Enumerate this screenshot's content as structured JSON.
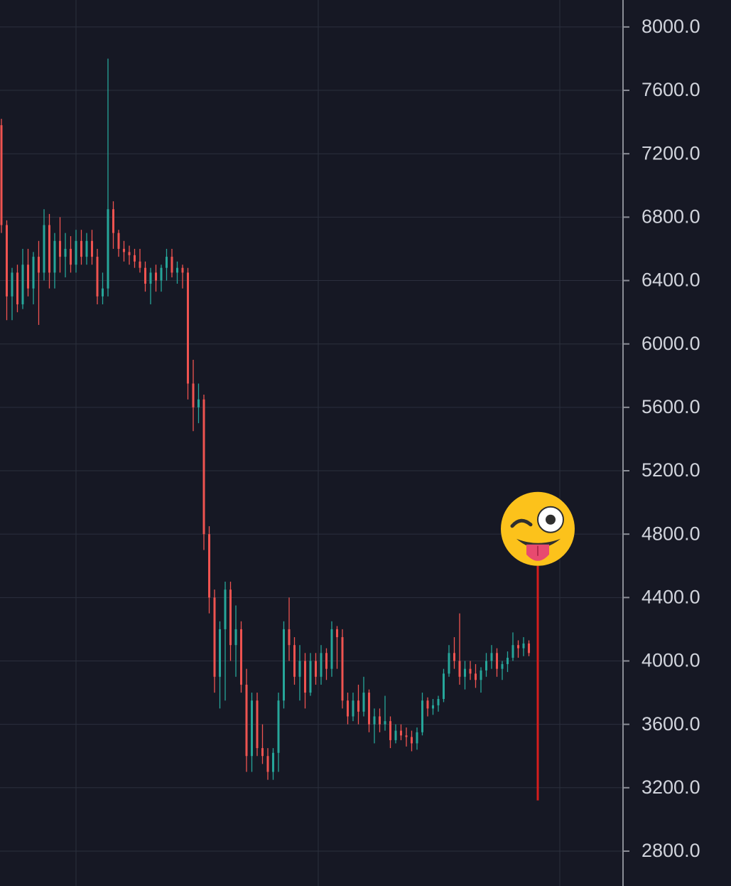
{
  "chart_data": {
    "type": "candlestick",
    "ylim": [
      2580,
      8170
    ],
    "yticks": [
      {
        "value": 8000,
        "label": "8000.0"
      },
      {
        "value": 7600,
        "label": "7600.0"
      },
      {
        "value": 7200,
        "label": "7200.0"
      },
      {
        "value": 6800,
        "label": "6800.0"
      },
      {
        "value": 6400,
        "label": "6400.0"
      },
      {
        "value": 6000,
        "label": "6000.0"
      },
      {
        "value": 5600,
        "label": "5600.0"
      },
      {
        "value": 5200,
        "label": "5200.0"
      },
      {
        "value": 4800,
        "label": "4800.0"
      },
      {
        "value": 4400,
        "label": "4400.0"
      },
      {
        "value": 4000,
        "label": "4000.0"
      },
      {
        "value": 3600,
        "label": "3600.0"
      },
      {
        "value": 3200,
        "label": "3200.0"
      },
      {
        "value": 2800,
        "label": "2800.0"
      }
    ],
    "grid": true,
    "up_color": "#26a69a",
    "down_color": "#ef5350",
    "open": [
      7380,
      6750,
      6300,
      6450,
      6250,
      6500,
      6350,
      6550,
      6450,
      6750,
      6450,
      6650,
      6550,
      6600,
      6500,
      6650,
      6550,
      6650,
      6550,
      6300,
      6350,
      6850,
      6700,
      6600,
      6580,
      6560,
      6520,
      6480,
      6380,
      6450,
      6400,
      6480,
      6550,
      6450,
      6480,
      6450,
      5750,
      5600,
      5650,
      4800,
      4400,
      3900,
      4200,
      4450,
      4100,
      4200,
      3850,
      3400,
      3750,
      3450,
      3400,
      3300,
      3420,
      3750,
      4200,
      4100,
      3900,
      4000,
      3800,
      4000,
      3900,
      4050,
      3950,
      4200,
      4150,
      3750,
      3650,
      3750,
      3680,
      3800,
      3600,
      3650,
      3600,
      3620,
      3500,
      3560,
      3530,
      3520,
      3480,
      3550,
      3750,
      3700,
      3720,
      3760,
      3920,
      4050,
      4000,
      3900,
      3950,
      3920,
      3880,
      3940,
      4000,
      4050,
      3950,
      3980,
      4020,
      4100,
      4080,
      4110
    ],
    "high": [
      7420,
      6780,
      6480,
      6500,
      6600,
      6600,
      6580,
      6650,
      6850,
      6820,
      6700,
      6800,
      6700,
      6680,
      6720,
      6720,
      6700,
      6720,
      6600,
      6450,
      7800,
      6900,
      6720,
      6650,
      6620,
      6600,
      6600,
      6520,
      6480,
      6500,
      6500,
      6600,
      6600,
      6520,
      6500,
      6480,
      5900,
      5750,
      5680,
      4850,
      4450,
      4250,
      4500,
      4500,
      4350,
      4250,
      3950,
      3800,
      3800,
      3600,
      3450,
      3450,
      3800,
      4250,
      4400,
      4150,
      4100,
      4050,
      4050,
      4050,
      4100,
      4080,
      4250,
      4220,
      4200,
      3800,
      3800,
      3850,
      3900,
      3820,
      3700,
      3700,
      3780,
      3650,
      3600,
      3600,
      3580,
      3560,
      3580,
      3800,
      3770,
      3760,
      3780,
      3950,
      4100,
      4150,
      4300,
      4000,
      4000,
      3980,
      3960,
      4050,
      4100,
      4080,
      4000,
      4060,
      4180,
      4130,
      4150,
      4130
    ],
    "low": [
      6700,
      6150,
      6150,
      6200,
      6220,
      6300,
      6250,
      6120,
      6400,
      6350,
      6350,
      6450,
      6420,
      6450,
      6450,
      6500,
      6500,
      6500,
      6250,
      6250,
      6300,
      6600,
      6550,
      6520,
      6500,
      6480,
      6450,
      6330,
      6250,
      6330,
      6330,
      6400,
      6420,
      6380,
      6350,
      5650,
      5450,
      5500,
      4700,
      4300,
      3800,
      3700,
      3750,
      4000,
      3900,
      3800,
      3300,
      3300,
      3400,
      3350,
      3250,
      3250,
      3300,
      3700,
      4000,
      3850,
      3750,
      3700,
      3780,
      3850,
      3850,
      3880,
      3900,
      3950,
      3700,
      3600,
      3620,
      3600,
      3650,
      3550,
      3480,
      3550,
      3560,
      3450,
      3480,
      3500,
      3460,
      3430,
      3440,
      3530,
      3650,
      3660,
      3680,
      3740,
      3900,
      3950,
      3850,
      3820,
      3880,
      3830,
      3800,
      3900,
      3950,
      3900,
      3880,
      3930,
      4000,
      4020,
      4030,
      4030
    ],
    "close": [
      6750,
      6300,
      6450,
      6250,
      6500,
      6350,
      6550,
      6450,
      6750,
      6450,
      6650,
      6550,
      6600,
      6500,
      6650,
      6550,
      6650,
      6550,
      6300,
      6350,
      6850,
      6700,
      6600,
      6580,
      6560,
      6520,
      6480,
      6380,
      6450,
      6400,
      6480,
      6550,
      6450,
      6480,
      6450,
      5750,
      5600,
      5650,
      4800,
      4400,
      3900,
      4200,
      4450,
      4100,
      4200,
      3850,
      3400,
      3750,
      3450,
      3400,
      3300,
      3420,
      3750,
      4200,
      4100,
      3900,
      4000,
      3800,
      4000,
      3900,
      4050,
      3950,
      4200,
      4150,
      3750,
      3650,
      3750,
      3680,
      3800,
      3600,
      3650,
      3600,
      3620,
      3500,
      3560,
      3530,
      3520,
      3480,
      3550,
      3750,
      3700,
      3720,
      3760,
      3920,
      4050,
      4000,
      3900,
      3950,
      3920,
      3880,
      3940,
      4000,
      4050,
      3950,
      3980,
      4020,
      4100,
      4080,
      4110,
      4050
    ],
    "marker": {
      "top": 4600,
      "bottom": 3120,
      "color": "#d61d1d"
    }
  }
}
